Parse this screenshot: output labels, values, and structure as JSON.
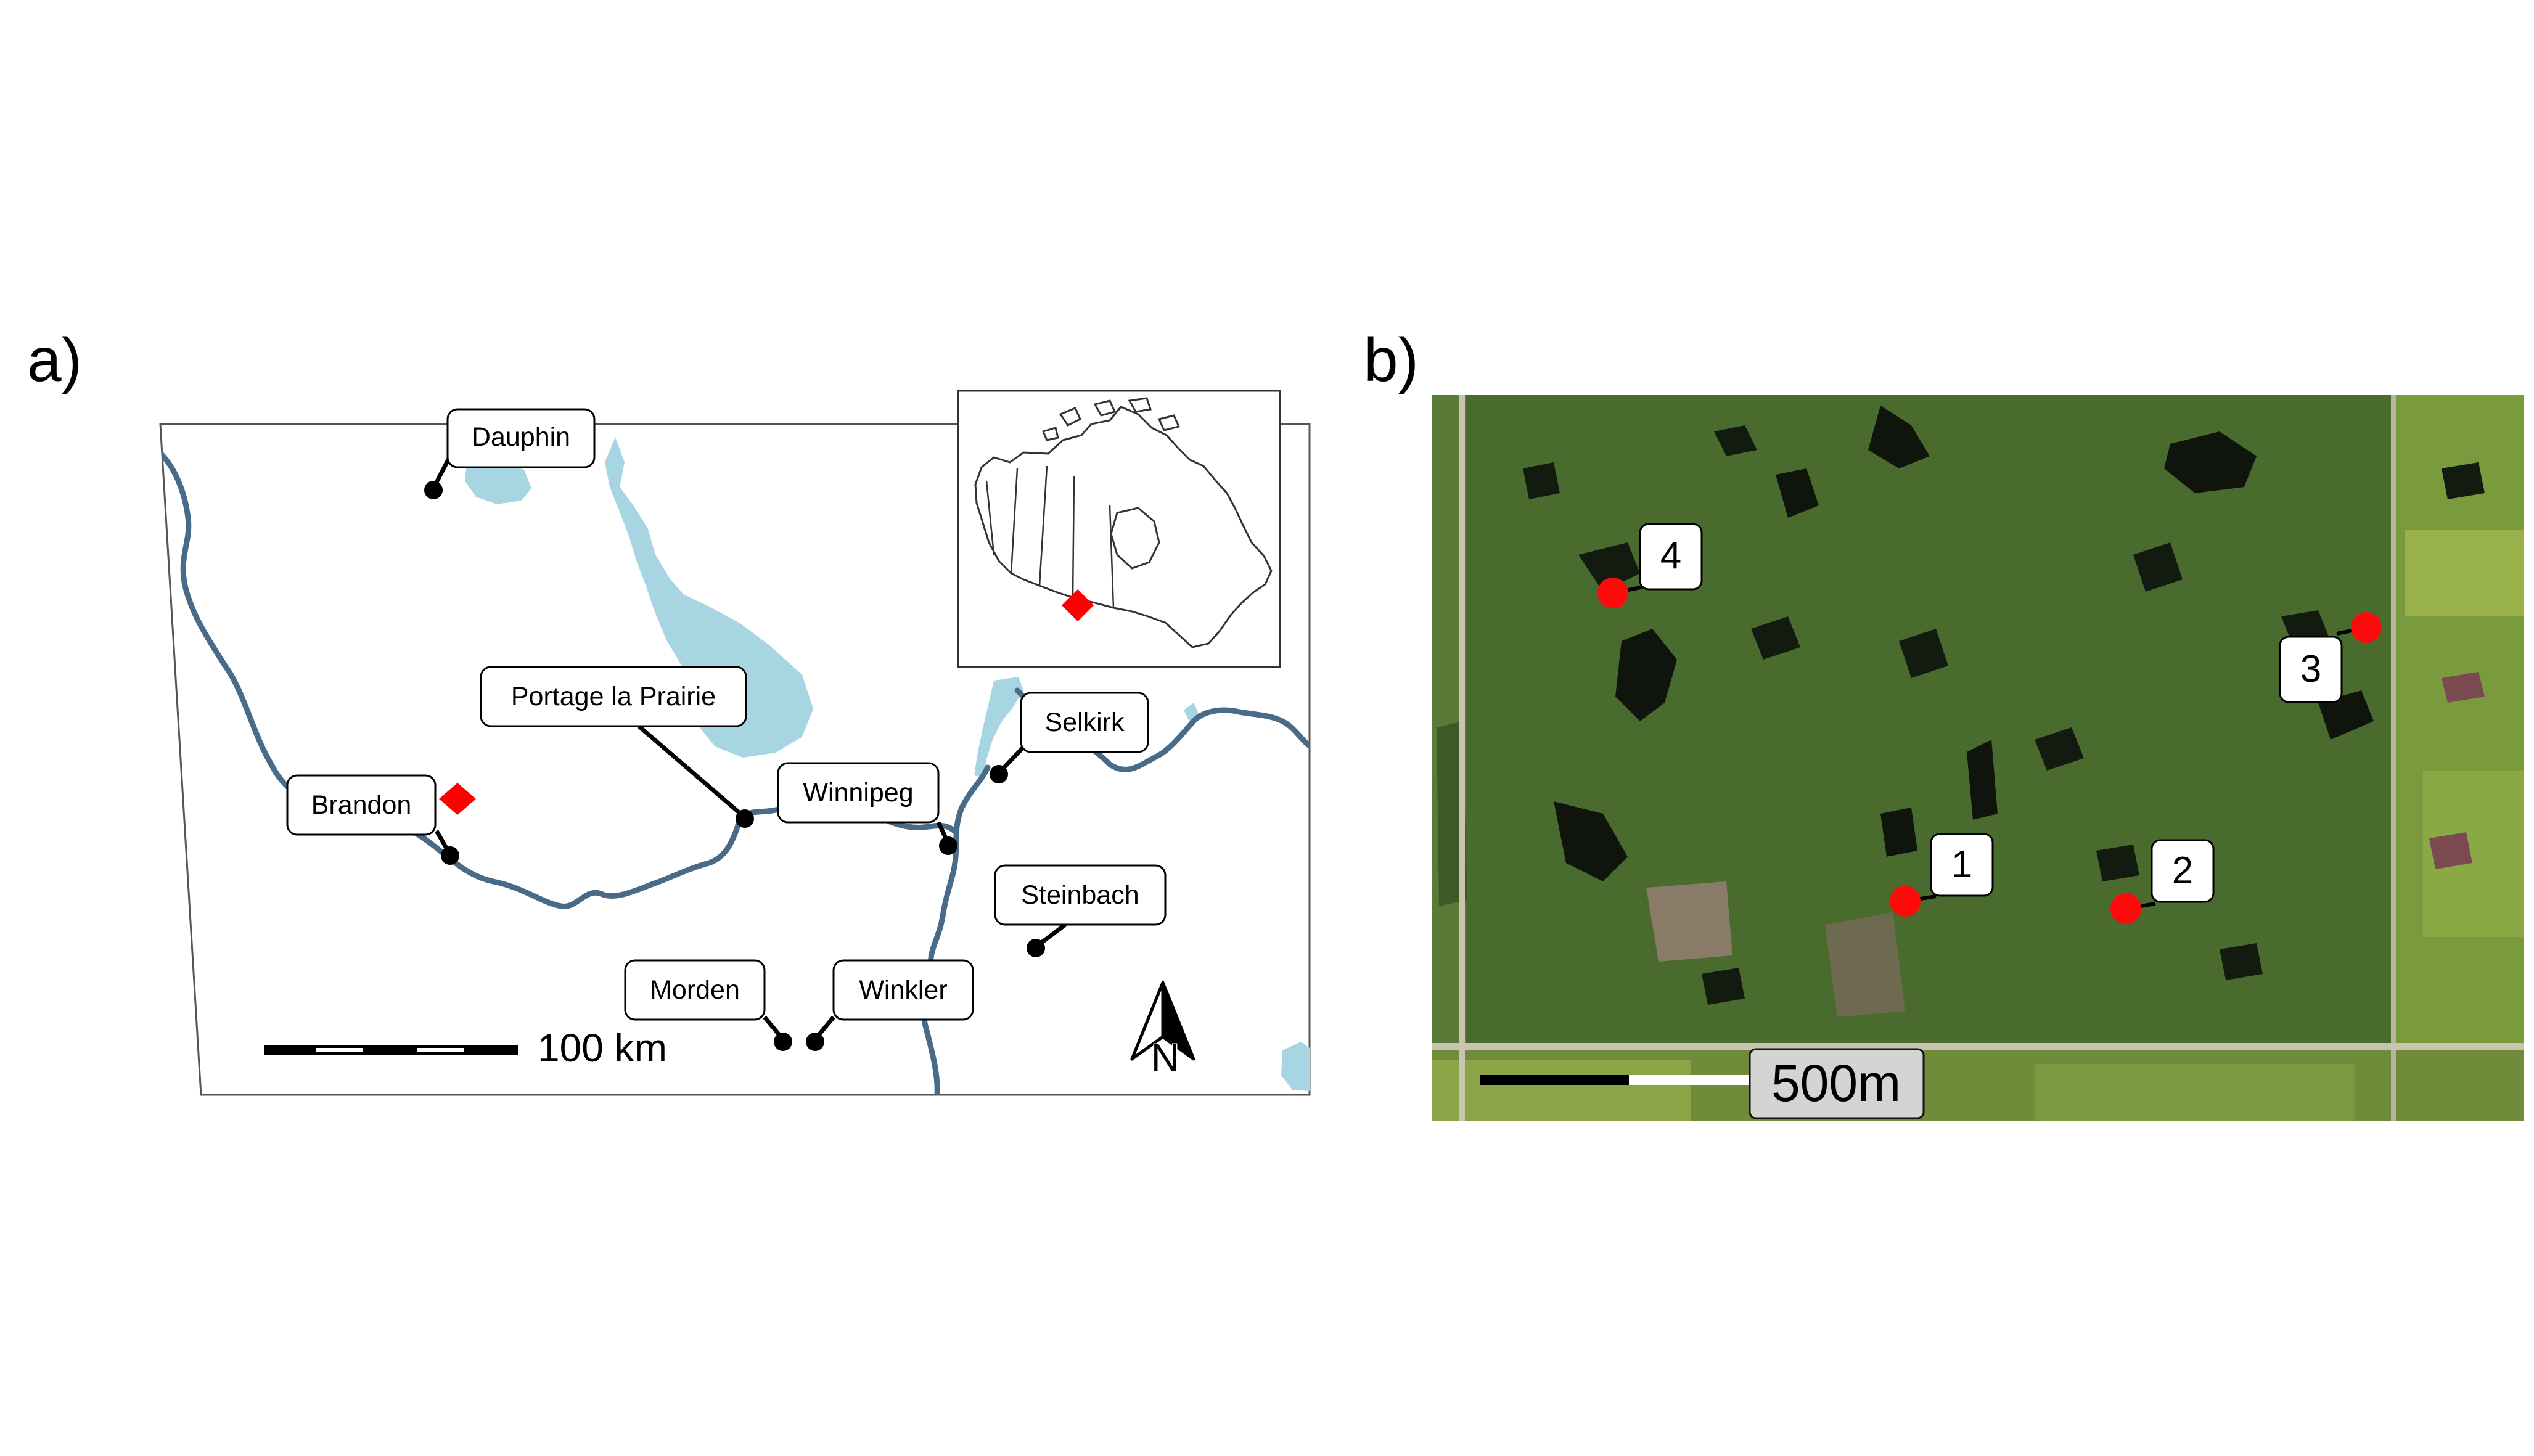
{
  "panel_a": {
    "label": "a)",
    "cities": [
      {
        "id": "dauphin",
        "name": "Dauphin"
      },
      {
        "id": "portage",
        "name": "Portage la Prairie"
      },
      {
        "id": "brandon",
        "name": "Brandon"
      },
      {
        "id": "winnipeg",
        "name": "Winnipeg"
      },
      {
        "id": "selkirk",
        "name": "Selkirk"
      },
      {
        "id": "steinbach",
        "name": "Steinbach"
      },
      {
        "id": "morden",
        "name": "Morden"
      },
      {
        "id": "winkler",
        "name": "Winkler"
      }
    ],
    "scale_bar_label": "100 km",
    "north_arrow_label": "N",
    "colors": {
      "water": "#a8d5e2",
      "river": "#4a6b87",
      "study_site_marker": "#ff0000",
      "city_marker": "#000000"
    },
    "inset": {
      "name": "canada-inset-map"
    }
  },
  "panel_b": {
    "label": "b)",
    "sites": [
      {
        "id": "site-1",
        "name": "1"
      },
      {
        "id": "site-2",
        "name": "2"
      },
      {
        "id": "site-3",
        "name": "3"
      },
      {
        "id": "site-4",
        "name": "4"
      }
    ],
    "scale_bar_label": "500m",
    "colors": {
      "imagery_base": "#4a6b2e",
      "wetland_dark": "#0f140c",
      "site_marker": "#ff0a0a"
    }
  }
}
